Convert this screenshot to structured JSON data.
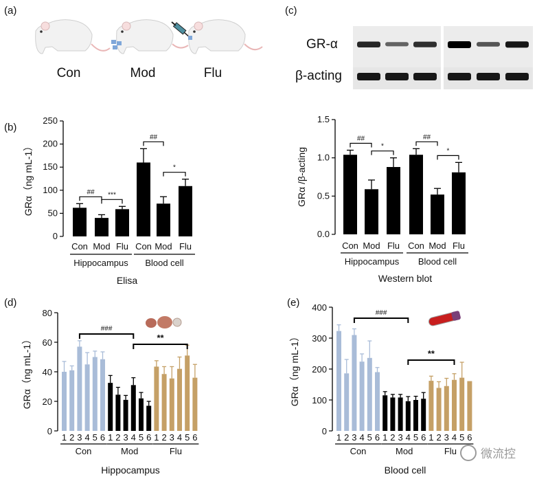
{
  "panel_a": {
    "label": "(a)",
    "groups": [
      "Con",
      "Mod",
      "Flu"
    ]
  },
  "panel_c_blot": {
    "label": "(c)",
    "rows": [
      "GR-α",
      "β-acting"
    ],
    "gr_band_intensity": [
      0.75,
      0.35,
      0.7,
      1.0,
      0.45,
      0.85
    ],
    "actin_band_intensity": [
      1.0,
      1.0,
      1.0,
      1.0,
      1.0,
      1.0
    ]
  },
  "chart_data": [
    {
      "panel": "(b)",
      "type": "bar",
      "ylabel": "GRα（ng mL-1）",
      "ylim": [
        0,
        250
      ],
      "yticks": [
        0,
        50,
        100,
        150,
        200,
        250
      ],
      "xlabel": "Elisa",
      "categories": [
        "Con",
        "Mod",
        "Flu",
        "Con",
        "Mod",
        "Flu"
      ],
      "group_labels": [
        "Hippocampus",
        "Blood cell"
      ],
      "values": [
        62,
        40,
        59,
        160,
        71,
        109
      ],
      "errors": [
        9,
        7,
        6,
        30,
        15,
        15
      ],
      "bar_color": "#000000",
      "significance": [
        {
          "from": 0,
          "to": 1,
          "label": "##"
        },
        {
          "from": 1,
          "to": 2,
          "label": "***"
        },
        {
          "from": 3,
          "to": 4,
          "label": "##"
        },
        {
          "from": 4,
          "to": 5,
          "label": "*"
        }
      ]
    },
    {
      "panel": "(c)",
      "type": "bar",
      "ylabel": "GRα /β-acting",
      "ylim": [
        0,
        1.5
      ],
      "yticks": [
        "0.0",
        "0.5",
        "1.0",
        "1.5"
      ],
      "xlabel": "Western blot",
      "categories": [
        "Con",
        "Mod",
        "Flu",
        "Con",
        "Mod",
        "Flu"
      ],
      "group_labels": [
        "Hippocampus",
        "Blood cell"
      ],
      "values": [
        1.04,
        0.59,
        0.88,
        1.04,
        0.52,
        0.81
      ],
      "errors": [
        0.06,
        0.12,
        0.12,
        0.08,
        0.08,
        0.13
      ],
      "bar_color": "#000000",
      "significance": [
        {
          "from": 0,
          "to": 1,
          "label": "##"
        },
        {
          "from": 1,
          "to": 2,
          "label": "*"
        },
        {
          "from": 3,
          "to": 4,
          "label": "##"
        },
        {
          "from": 4,
          "to": 5,
          "label": "*"
        }
      ]
    },
    {
      "panel": "(d)",
      "type": "bar",
      "ylabel": "GRα（ng mL-1）",
      "ylim": [
        0,
        80
      ],
      "yticks": [
        0,
        20,
        40,
        60,
        80
      ],
      "xlabel": "Hippocampus",
      "tick_labels": [
        "1",
        "2",
        "3",
        "4",
        "5",
        "6",
        "1",
        "2",
        "3",
        "4",
        "5",
        "6",
        "1",
        "2",
        "3",
        "4",
        "5",
        "6"
      ],
      "group_labels": [
        "Con",
        "Mod",
        "Flu"
      ],
      "colors": [
        "#a9bcd8",
        "#000000",
        "#c5a066"
      ],
      "values": [
        40,
        41,
        57,
        45,
        50,
        48.5,
        32.5,
        24.5,
        21,
        31,
        22,
        17,
        43.5,
        38.5,
        35.5,
        42,
        51,
        36
      ],
      "errors": [
        7,
        3,
        4,
        8,
        4,
        5,
        5,
        5,
        3,
        5,
        4,
        3,
        4,
        5,
        8,
        8,
        7,
        9
      ],
      "significance": [
        {
          "from": 2,
          "to": 9,
          "label": "###"
        },
        {
          "from": 9,
          "to": 16,
          "label": "**"
        }
      ]
    },
    {
      "panel": "(e)",
      "type": "bar",
      "ylabel": "GRα（ng mL-1）",
      "ylim": [
        0,
        400
      ],
      "yticks": [
        0,
        100,
        200,
        300,
        400
      ],
      "xlabel": "Blood cell",
      "tick_labels": [
        "1",
        "2",
        "3",
        "4",
        "5",
        "6",
        "1",
        "2",
        "3",
        "4",
        "5",
        "6",
        "1",
        "2",
        "3",
        "4",
        "5",
        "6"
      ],
      "group_labels": [
        "Con",
        "Mod",
        "Flu"
      ],
      "colors": [
        "#a9bcd8",
        "#000000",
        "#c5a066"
      ],
      "values": [
        323,
        186,
        310,
        224,
        236,
        190,
        115,
        108,
        108,
        96,
        100,
        104,
        162,
        139,
        145,
        165,
        172,
        161
      ],
      "errors": [
        20,
        45,
        20,
        25,
        55,
        15,
        12,
        10,
        10,
        15,
        12,
        20,
        15,
        20,
        25,
        20,
        50,
        0
      ],
      "significance": [
        {
          "from": 2,
          "to": 9,
          "label": "###"
        },
        {
          "from": 9,
          "to": 15,
          "label": "**"
        }
      ]
    }
  ],
  "watermark": "微流控"
}
